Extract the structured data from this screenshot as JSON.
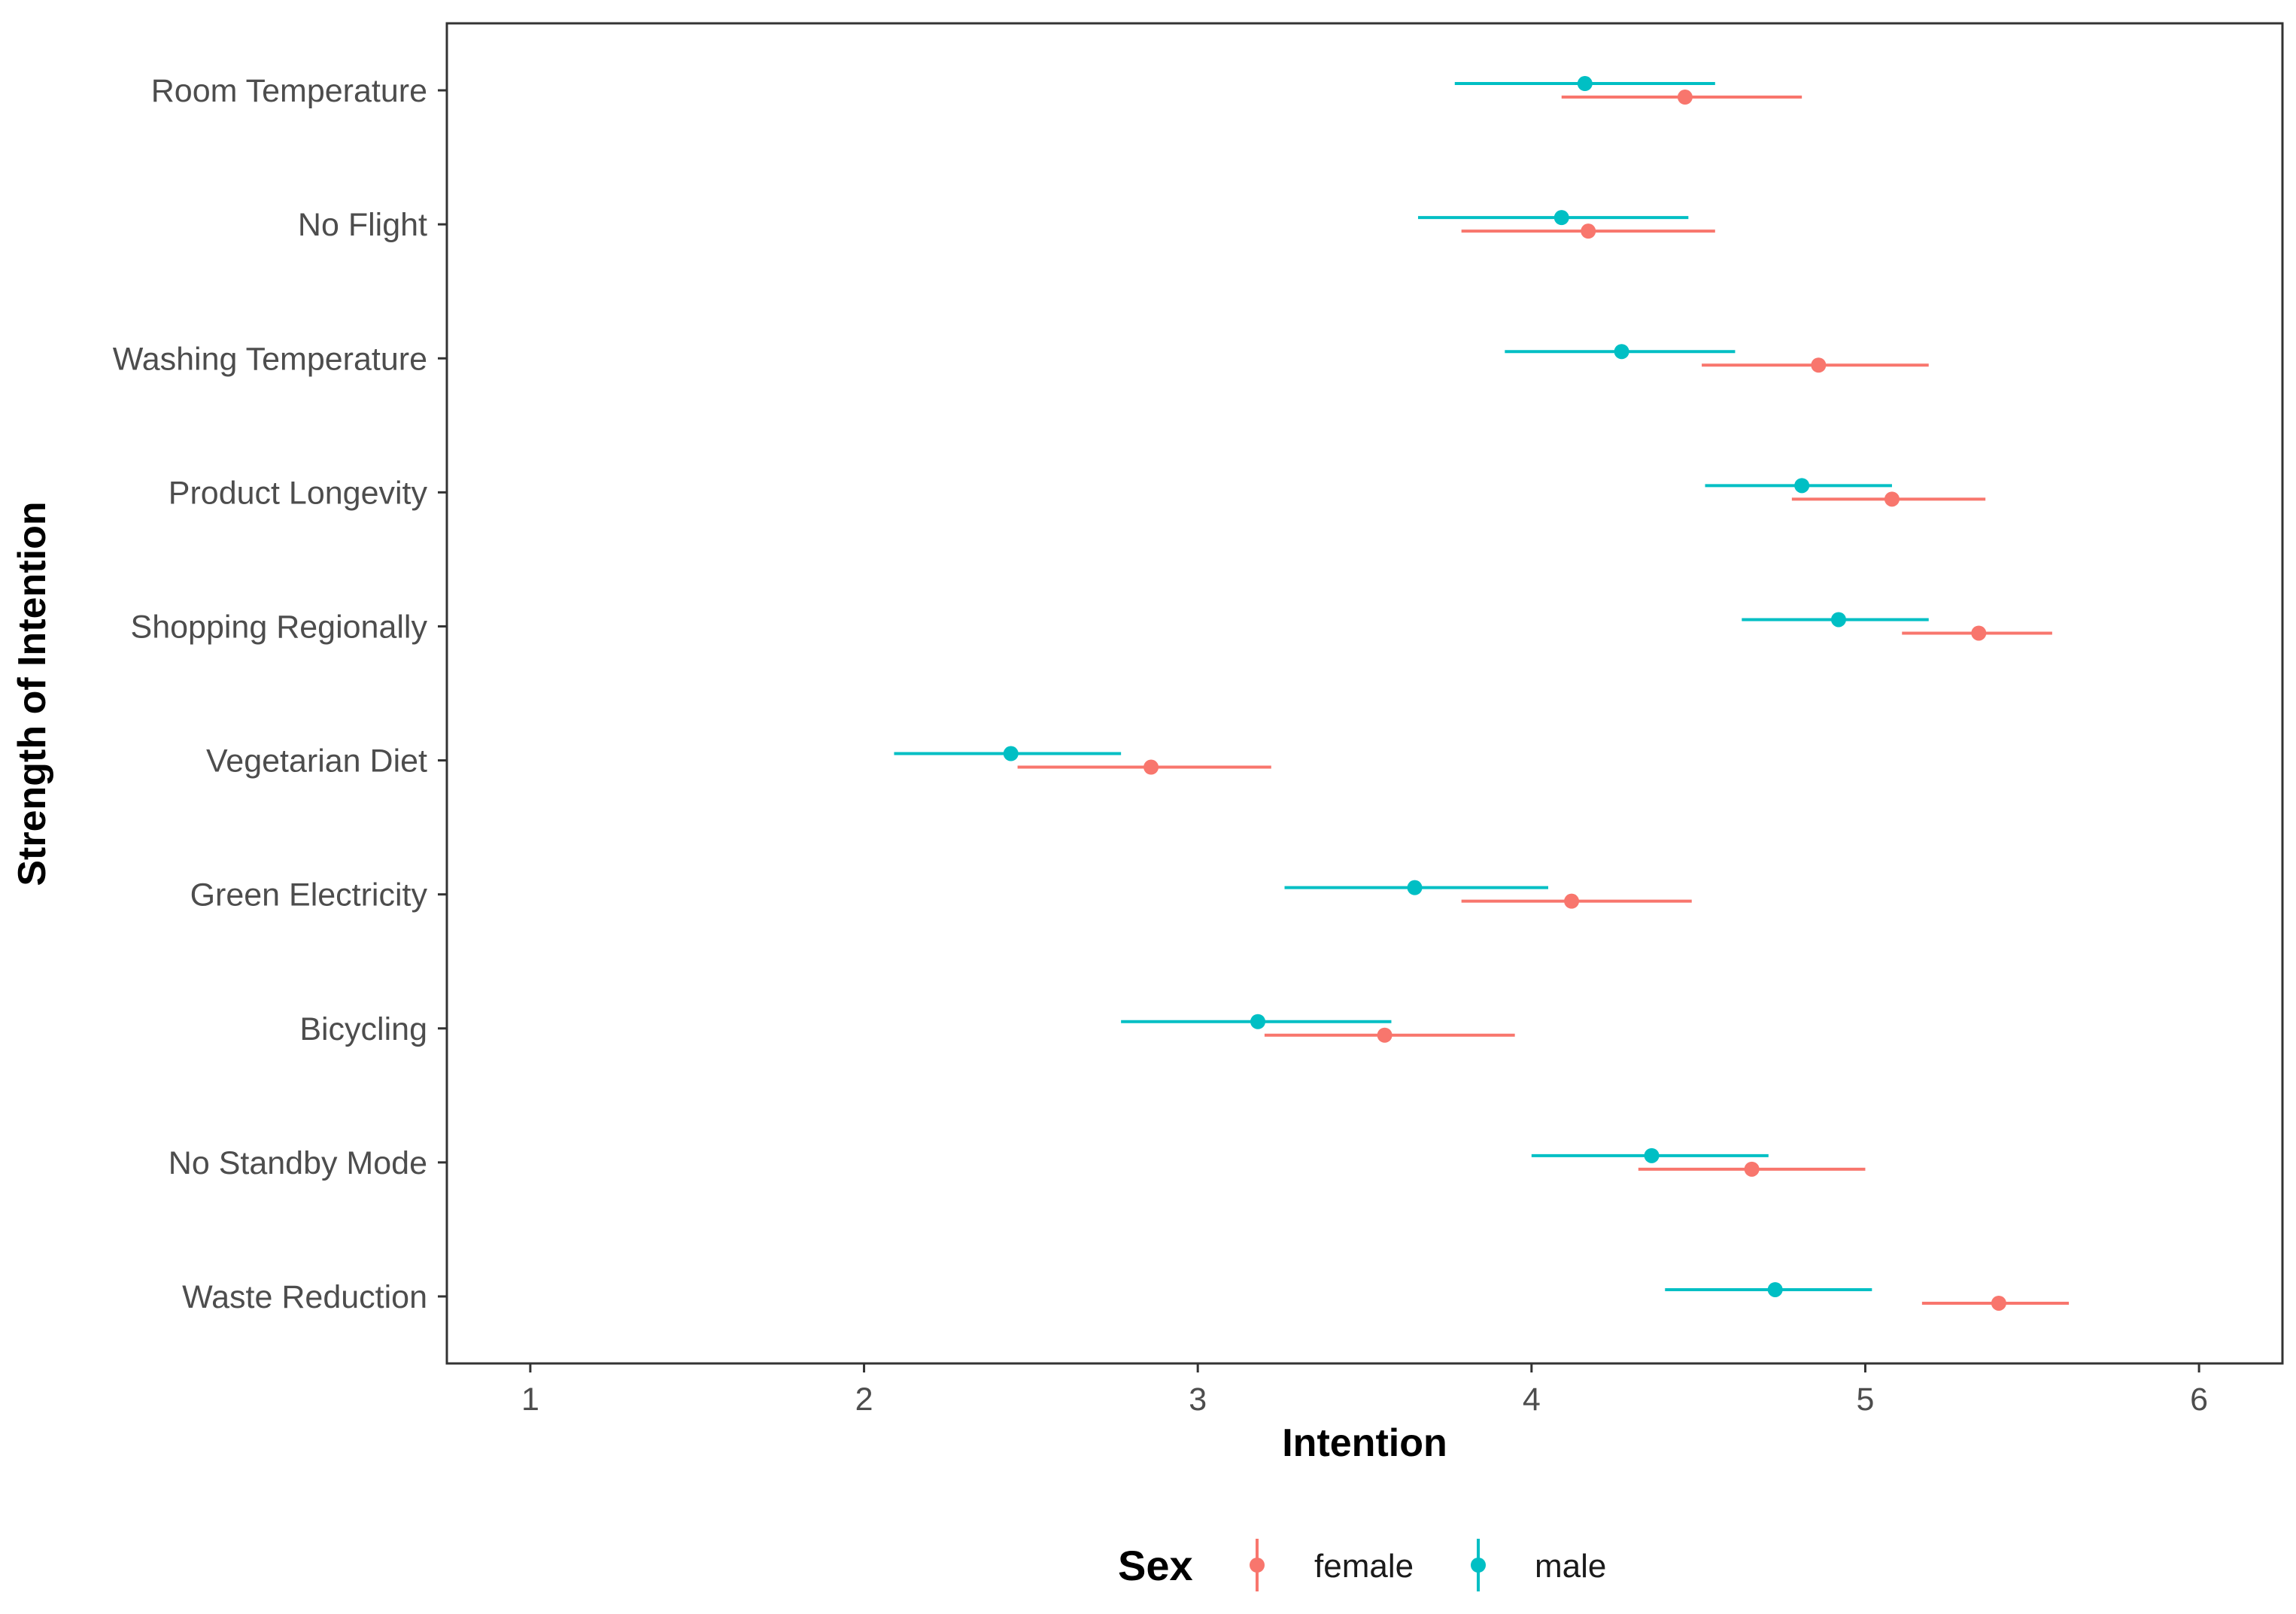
{
  "chart_data": {
    "type": "dot-errorbar",
    "title": "",
    "xlabel": "Intention",
    "ylabel": "Strength of Intention",
    "xlim": [
      0.75,
      6.25
    ],
    "xticks": [
      1,
      2,
      3,
      4,
      5,
      6
    ],
    "categories": [
      "Room Temperature",
      "No Flight",
      "Washing Temperature",
      "Product Longevity",
      "Shopping Regionally",
      "Vegetarian Diet",
      "Green Electricity",
      "Bicycling",
      "No Standby Mode",
      "Waste Reduction"
    ],
    "legend": {
      "title": "Sex",
      "position": "bottom"
    },
    "series": [
      {
        "name": "female",
        "color": "#f8766d",
        "points": [
          {
            "mean": 4.46,
            "low": 4.09,
            "high": 4.81
          },
          {
            "mean": 4.17,
            "low": 3.79,
            "high": 4.55
          },
          {
            "mean": 4.86,
            "low": 4.51,
            "high": 5.19
          },
          {
            "mean": 5.08,
            "low": 4.78,
            "high": 5.36
          },
          {
            "mean": 5.34,
            "low": 5.11,
            "high": 5.56
          },
          {
            "mean": 2.86,
            "low": 2.46,
            "high": 3.22
          },
          {
            "mean": 4.12,
            "low": 3.79,
            "high": 4.48
          },
          {
            "mean": 3.56,
            "low": 3.2,
            "high": 3.95
          },
          {
            "mean": 4.66,
            "low": 4.32,
            "high": 5.0
          },
          {
            "mean": 5.4,
            "low": 5.17,
            "high": 5.61
          }
        ]
      },
      {
        "name": "male",
        "color": "#00bfc4",
        "points": [
          {
            "mean": 4.16,
            "low": 3.77,
            "high": 4.55
          },
          {
            "mean": 4.09,
            "low": 3.66,
            "high": 4.47
          },
          {
            "mean": 4.27,
            "low": 3.92,
            "high": 4.61
          },
          {
            "mean": 4.81,
            "low": 4.52,
            "high": 5.08
          },
          {
            "mean": 4.92,
            "low": 4.63,
            "high": 5.19
          },
          {
            "mean": 2.44,
            "low": 2.09,
            "high": 2.77
          },
          {
            "mean": 3.65,
            "low": 3.26,
            "high": 4.05
          },
          {
            "mean": 3.18,
            "low": 2.77,
            "high": 3.58
          },
          {
            "mean": 4.36,
            "low": 4.0,
            "high": 4.71
          },
          {
            "mean": 4.73,
            "low": 4.4,
            "high": 5.02
          }
        ]
      }
    ]
  }
}
